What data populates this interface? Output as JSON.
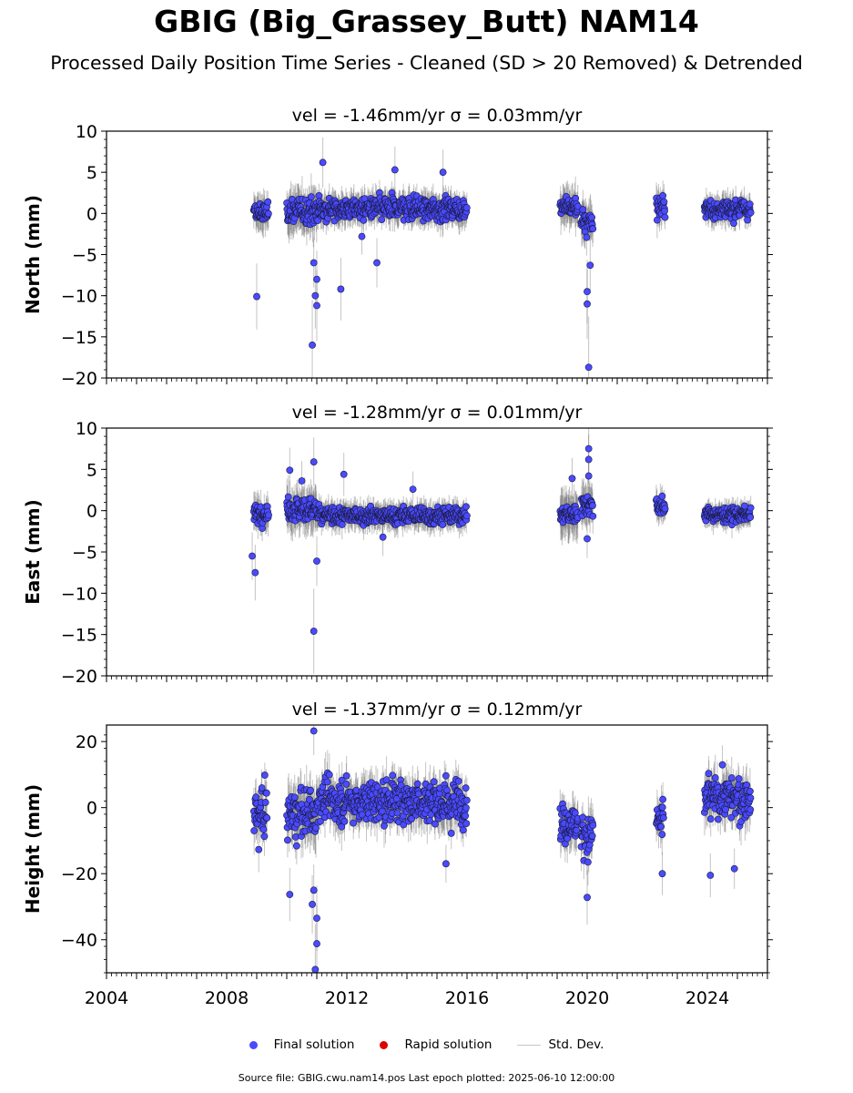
{
  "title": "GBIG (Big_Grassey_Butt) NAM14",
  "subtitle": "Processed Daily Position Time Series - Cleaned (SD > 20 Removed) & Detrended",
  "legend": {
    "final_label": "Final solution",
    "rapid_label": "Rapid solution",
    "std_label": "Std. Dev.",
    "final_color": "#4a4aff",
    "rapid_color": "#e00000",
    "std_color": "#c8c8c8"
  },
  "footer": "Source file: GBIG.cwu.nam14.pos  Last epoch plotted: 2025-06-10 12:00:00",
  "chart_data": {
    "type": "scatter",
    "xlim": [
      2004,
      2026
    ],
    "xticks": [
      2004,
      2008,
      2012,
      2016,
      2020,
      2024
    ],
    "last_epoch": "2025-06-10 12:00:00",
    "panels": [
      {
        "name": "north",
        "ylabel": "North (mm)",
        "annotation": "vel = -1.46mm/yr   σ = 0.03mm/yr",
        "ylim": [
          -20,
          10
        ],
        "yticks": [
          -20,
          -15,
          -10,
          -5,
          0,
          5,
          10
        ],
        "segments": [
          {
            "start": 2008.9,
            "end": 2009.4,
            "mean": 0.0,
            "spread": 1.0,
            "sd": 1.6
          },
          {
            "start": 2010.0,
            "end": 2011.0,
            "mean": 0.3,
            "spread": 1.3,
            "sd": 2.0
          },
          {
            "start": 2011.0,
            "end": 2016.0,
            "mean": 0.6,
            "spread": 1.1,
            "sd": 1.4
          },
          {
            "start": 2019.1,
            "end": 2019.7,
            "mean": 0.7,
            "spread": 1.0,
            "sd": 1.8
          },
          {
            "start": 2019.8,
            "end": 2020.2,
            "mean": -1.0,
            "spread": 1.3,
            "sd": 1.8
          },
          {
            "start": 2022.3,
            "end": 2022.6,
            "mean": 0.9,
            "spread": 1.0,
            "sd": 1.5
          },
          {
            "start": 2023.9,
            "end": 2025.45,
            "mean": 0.5,
            "spread": 0.9,
            "sd": 1.3
          }
        ],
        "outliers": [
          {
            "x": 2009.0,
            "y": -10.1
          },
          {
            "x": 2010.85,
            "y": -16.0
          },
          {
            "x": 2010.95,
            "y": -10.0
          },
          {
            "x": 2011.0,
            "y": -11.2
          },
          {
            "x": 2011.0,
            "y": -8.0
          },
          {
            "x": 2010.9,
            "y": -6.0
          },
          {
            "x": 2011.2,
            "y": 6.2
          },
          {
            "x": 2011.8,
            "y": -9.2
          },
          {
            "x": 2012.5,
            "y": -2.8
          },
          {
            "x": 2013.0,
            "y": -6.0
          },
          {
            "x": 2013.6,
            "y": 5.3
          },
          {
            "x": 2015.2,
            "y": 5.0
          },
          {
            "x": 2020.0,
            "y": -9.5
          },
          {
            "x": 2020.0,
            "y": -11.0
          },
          {
            "x": 2020.1,
            "y": -6.3
          },
          {
            "x": 2020.05,
            "y": -18.7
          }
        ]
      },
      {
        "name": "east",
        "ylabel": "East (mm)",
        "annotation": "vel = -1.28mm/yr   σ = 0.01mm/yr",
        "ylim": [
          -20,
          10
        ],
        "yticks": [
          -20,
          -15,
          -10,
          -5,
          0,
          5,
          10
        ],
        "segments": [
          {
            "start": 2008.9,
            "end": 2009.4,
            "mean": -0.4,
            "spread": 0.9,
            "sd": 1.6
          },
          {
            "start": 2010.0,
            "end": 2011.0,
            "mean": 0.2,
            "spread": 1.2,
            "sd": 2.0
          },
          {
            "start": 2011.0,
            "end": 2016.0,
            "mean": -0.6,
            "spread": 0.8,
            "sd": 1.2
          },
          {
            "start": 2019.1,
            "end": 2019.7,
            "mean": -0.5,
            "spread": 0.9,
            "sd": 2.2
          },
          {
            "start": 2019.8,
            "end": 2020.2,
            "mean": 0.8,
            "spread": 1.1,
            "sd": 1.8
          },
          {
            "start": 2022.3,
            "end": 2022.6,
            "mean": 0.5,
            "spread": 0.9,
            "sd": 1.4
          },
          {
            "start": 2023.9,
            "end": 2025.45,
            "mean": -0.5,
            "spread": 0.7,
            "sd": 1.1
          }
        ],
        "outliers": [
          {
            "x": 2008.85,
            "y": -5.5
          },
          {
            "x": 2008.95,
            "y": -7.5
          },
          {
            "x": 2010.1,
            "y": 4.9
          },
          {
            "x": 2010.5,
            "y": 3.6
          },
          {
            "x": 2010.9,
            "y": 5.9
          },
          {
            "x": 2011.0,
            "y": -6.1
          },
          {
            "x": 2010.9,
            "y": -14.6
          },
          {
            "x": 2011.9,
            "y": 4.4
          },
          {
            "x": 2013.2,
            "y": -3.2
          },
          {
            "x": 2014.2,
            "y": 2.6
          },
          {
            "x": 2019.5,
            "y": 3.9
          },
          {
            "x": 2020.05,
            "y": 7.5
          },
          {
            "x": 2020.05,
            "y": 6.2
          },
          {
            "x": 2020.05,
            "y": 4.2
          },
          {
            "x": 2020.0,
            "y": -3.4
          }
        ]
      },
      {
        "name": "height",
        "ylabel": "Height (mm)",
        "annotation": "vel = -1.37mm/yr   σ = 0.12mm/yr",
        "ylim": [
          -50,
          25
        ],
        "yticks": [
          -40,
          -20,
          0,
          20
        ],
        "segments": [
          {
            "start": 2008.9,
            "end": 2009.35,
            "mean": -2.0,
            "spread": 7.0,
            "sd": 5.0
          },
          {
            "start": 2010.0,
            "end": 2011.0,
            "mean": -2.0,
            "spread": 6.5,
            "sd": 6.0
          },
          {
            "start": 2011.0,
            "end": 2016.0,
            "mean": 2.0,
            "spread": 5.5,
            "sd": 5.0
          },
          {
            "start": 2019.1,
            "end": 2019.7,
            "mean": -5.0,
            "spread": 4.5,
            "sd": 5.0
          },
          {
            "start": 2019.8,
            "end": 2020.2,
            "mean": -8.0,
            "spread": 6.0,
            "sd": 5.0
          },
          {
            "start": 2022.3,
            "end": 2022.55,
            "mean": -4.0,
            "spread": 5.0,
            "sd": 4.5
          },
          {
            "start": 2023.9,
            "end": 2025.45,
            "mean": 3.0,
            "spread": 5.5,
            "sd": 5.0
          }
        ],
        "outliers": [
          {
            "x": 2010.1,
            "y": -26.3
          },
          {
            "x": 2010.85,
            "y": -29.3
          },
          {
            "x": 2010.9,
            "y": -25.0
          },
          {
            "x": 2011.0,
            "y": -33.5
          },
          {
            "x": 2011.0,
            "y": -41.2
          },
          {
            "x": 2010.95,
            "y": -49.0
          },
          {
            "x": 2010.9,
            "y": 23.2
          },
          {
            "x": 2015.3,
            "y": -17.0
          },
          {
            "x": 2020.0,
            "y": -27.2
          },
          {
            "x": 2022.5,
            "y": -20.0
          },
          {
            "x": 2024.1,
            "y": -20.5
          },
          {
            "x": 2024.9,
            "y": -18.5
          }
        ]
      }
    ]
  }
}
